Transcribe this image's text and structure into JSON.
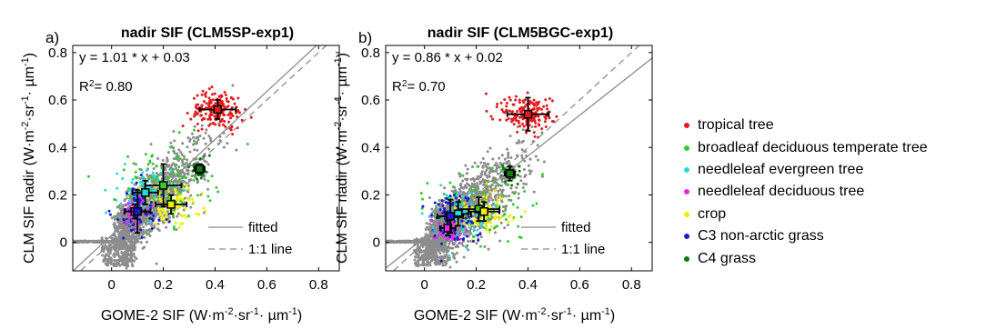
{
  "chart_data": [
    {
      "panel_label": "a)",
      "type": "scatter",
      "title": "nadir SIF (CLM5SP-exp1)",
      "xlabel": "GOME-2 SIF (W·m⁻²·sr⁻¹· µm⁻¹)",
      "ylabel": "CLM SIF nadir (W·m⁻²·sr⁻¹· µm⁻¹)",
      "xlim": [
        -0.15,
        0.88
      ],
      "ylim": [
        -0.12,
        0.83
      ],
      "xticks": [
        "0",
        "0.2",
        "0.4",
        "0.6",
        "0.8"
      ],
      "yticks": [
        "0",
        "0.2",
        "0.4",
        "0.6",
        "0.8"
      ],
      "grid": false,
      "fit_equation": "y = 1.01 * x + 0.03",
      "r2_label": "R²= 0.80",
      "fit": {
        "slope": 1.01,
        "intercept": 0.03
      },
      "legend_entries": [
        "fitted",
        "1:1 line"
      ],
      "legend_position": "bottom-right",
      "pft_means": [
        {
          "pft": "tropical tree",
          "x": 0.41,
          "y": 0.56,
          "xerr": 0.07,
          "yerr": 0.04
        },
        {
          "pft": "broadleaf deciduous temperate tree",
          "x": 0.2,
          "y": 0.24,
          "xerr": 0.07,
          "yerr": 0.09
        },
        {
          "pft": "needleleaf evergreen tree",
          "x": 0.13,
          "y": 0.21,
          "xerr": 0.05,
          "yerr": 0.05
        },
        {
          "pft": "needleleaf deciduous tree",
          "x": 0.09,
          "y": 0.13,
          "xerr": 0.04,
          "yerr": 0.03
        },
        {
          "pft": "crop",
          "x": 0.23,
          "y": 0.16,
          "xerr": 0.06,
          "yerr": 0.04
        },
        {
          "pft": "C3 non-arctic grass",
          "x": 0.1,
          "y": 0.13,
          "xerr": 0.05,
          "yerr": 0.09
        },
        {
          "pft": "C4 grass",
          "x": 0.34,
          "y": 0.31,
          "xerr": 0.02,
          "yerr": 0.02
        }
      ]
    },
    {
      "panel_label": "b)",
      "type": "scatter",
      "title": "nadir SIF (CLM5BGC-exp1)",
      "xlabel": "GOME-2 SIF (W·m⁻²·sr⁻¹· µm⁻¹)",
      "ylabel": "CLM SIF nadir (W·m⁻²·sr⁻¹· µm⁻¹)",
      "xlim": [
        -0.15,
        0.88
      ],
      "ylim": [
        -0.12,
        0.83
      ],
      "xticks": [
        "0",
        "0.2",
        "0.4",
        "0.6",
        "0.8"
      ],
      "yticks": [
        "0",
        "0.2",
        "0.4",
        "0.6",
        "0.8"
      ],
      "grid": false,
      "fit_equation": "y = 0.86 * x + 0.02",
      "r2_label": "R²= 0.70",
      "fit": {
        "slope": 0.86,
        "intercept": 0.02
      },
      "legend_entries": [
        "fitted",
        "1:1 line"
      ],
      "legend_position": "bottom-right",
      "pft_means": [
        {
          "pft": "tropical tree",
          "x": 0.4,
          "y": 0.54,
          "xerr": 0.08,
          "yerr": 0.07
        },
        {
          "pft": "broadleaf deciduous temperate tree",
          "x": 0.21,
          "y": 0.14,
          "xerr": 0.08,
          "yerr": 0.05
        },
        {
          "pft": "needleleaf evergreen tree",
          "x": 0.13,
          "y": 0.12,
          "xerr": 0.05,
          "yerr": 0.05
        },
        {
          "pft": "needleleaf deciduous tree",
          "x": 0.09,
          "y": 0.06,
          "xerr": 0.03,
          "yerr": 0.03
        },
        {
          "pft": "crop",
          "x": 0.23,
          "y": 0.13,
          "xerr": 0.06,
          "yerr": 0.04
        },
        {
          "pft": "C3 non-arctic grass",
          "x": 0.1,
          "y": 0.11,
          "xerr": 0.05,
          "yerr": 0.07
        },
        {
          "pft": "C4 grass",
          "x": 0.33,
          "y": 0.29,
          "xerr": 0.02,
          "yerr": 0.03
        }
      ]
    }
  ],
  "pft_legend": [
    {
      "label": "tropical tree",
      "color": "#e41a1c"
    },
    {
      "label": "broadleaf deciduous temperate tree",
      "color": "#33cc33"
    },
    {
      "label": "needleleaf evergreen tree",
      "color": "#22dddd"
    },
    {
      "label": "needleleaf deciduous tree",
      "color": "#ee22ee"
    },
    {
      "label": "crop",
      "color": "#eeee00"
    },
    {
      "label": "C3 non-arctic grass",
      "color": "#1a1acc"
    },
    {
      "label": "C4 grass",
      "color": "#117711"
    }
  ],
  "colors": {
    "background_points": "#8c8c8c",
    "fit_line": "#8c8c8c"
  }
}
